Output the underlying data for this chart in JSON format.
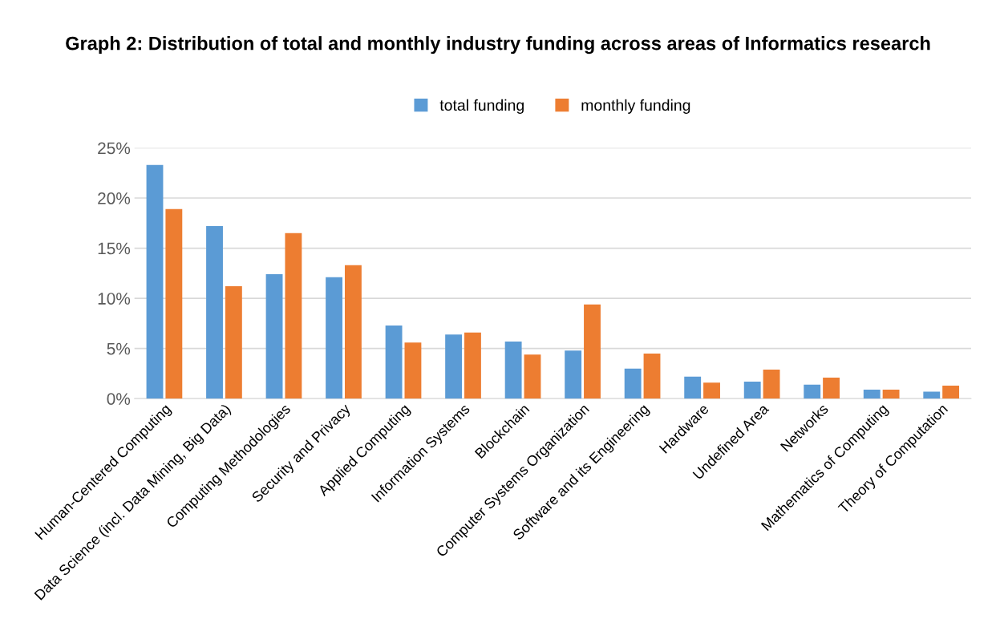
{
  "chart_data": {
    "type": "bar",
    "title": "Graph 2: Distribution of total and monthly industry funding across areas of Informatics research",
    "categories": [
      "Human-Centered Computing",
      "Data Science (incl. Data Mining, Big Data)",
      "Computing Methodologies",
      "Security and Privacy",
      "Applied Computing",
      "Information Systems",
      "Blockchain",
      "Computer Systems Organization",
      "Software and its Engineering",
      "Hardware",
      "Undefined Area",
      "Networks",
      "Mathematics of Computing",
      "Theory of Computation"
    ],
    "series": [
      {
        "name": "total funding",
        "color": "#5b9bd5",
        "values": [
          23.3,
          17.2,
          12.4,
          12.1,
          7.3,
          6.4,
          5.7,
          4.8,
          3.0,
          2.2,
          1.7,
          1.4,
          0.9,
          0.7
        ]
      },
      {
        "name": "monthly funding",
        "color": "#ed7d31",
        "values": [
          18.9,
          11.2,
          16.5,
          13.3,
          5.6,
          6.6,
          4.4,
          9.4,
          4.5,
          1.6,
          2.9,
          2.1,
          0.9,
          1.3
        ]
      }
    ],
    "ylim": [
      0,
      25
    ],
    "yticks": [
      {
        "value": 0,
        "label": "0%"
      },
      {
        "value": 5,
        "label": "5%"
      },
      {
        "value": 10,
        "label": "10%"
      },
      {
        "value": 15,
        "label": "15%"
      },
      {
        "value": 20,
        "label": "20%"
      },
      {
        "value": 25,
        "label": "25%"
      }
    ],
    "grid": "y",
    "legend": "top"
  }
}
